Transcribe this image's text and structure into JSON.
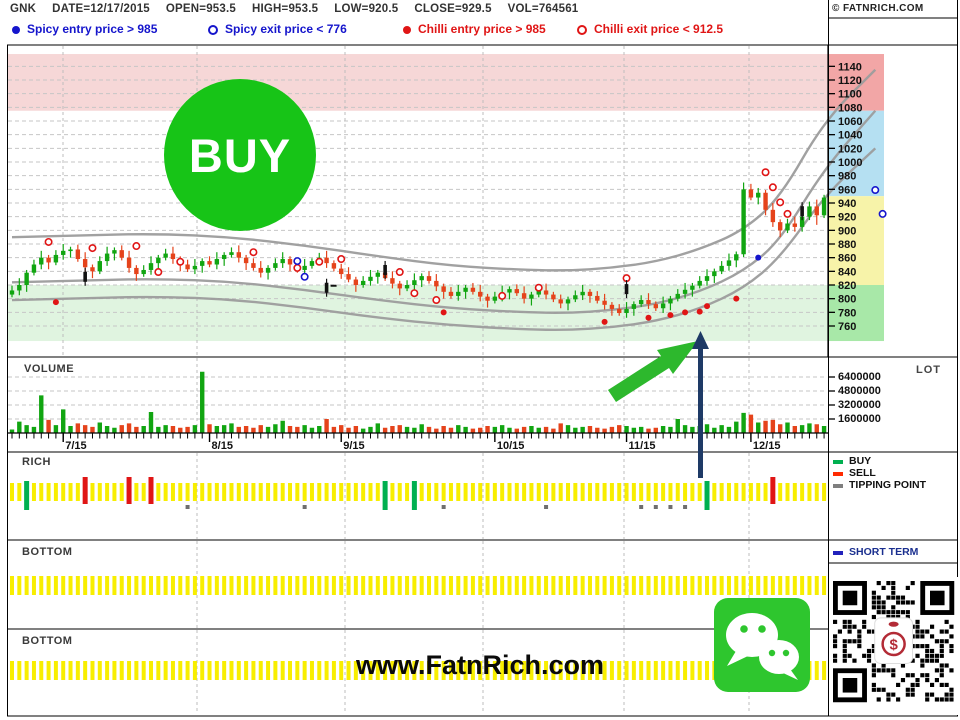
{
  "header": {
    "symbol": "GNK",
    "fields": [
      "DATE=12/17/2015",
      "OPEN=953.5",
      "HIGH=953.5",
      "LOW=920.5",
      "CLOSE=929.5",
      "VOL=764561"
    ],
    "copyright": "© FATNRICH.COM"
  },
  "signal_legend": [
    {
      "label": "Spicy entry price > 985",
      "color": "#1515cc",
      "filled": true
    },
    {
      "label": "Spicy exit price < 776",
      "color": "#1515cc",
      "filled": false
    },
    {
      "label": "Chilli entry price > 985",
      "color": "#e01515",
      "filled": true
    },
    {
      "label": "Chilli exit price < 912.5",
      "color": "#e01515",
      "filled": false
    }
  ],
  "buy_badge": {
    "label": "BUY",
    "bg": "#17c417"
  },
  "watermark": "www.FatnRich.com",
  "panels": {
    "volume": {
      "label": "VOLUME",
      "unit_label": "LOT",
      "axis_labels": [
        "6400000",
        "4800000",
        "3200000",
        "1600000"
      ]
    },
    "rich": {
      "label": "RICH",
      "legend": [
        {
          "label": "BUY",
          "color": "#00b050"
        },
        {
          "label": "SELL",
          "color": "#ff2a00"
        },
        {
          "label": "TIPPING POINT",
          "color": "#7f7f7f"
        }
      ]
    },
    "bottom1": {
      "label": "BOTTOM",
      "legend": [
        {
          "label": "SHORT TERM",
          "color": "#2222bb"
        }
      ]
    },
    "bottom2": {
      "label": "BOTTOM"
    }
  },
  "colors": {
    "up": "#11a511",
    "down": "#e5431b",
    "yellow_tick": "#f8ee00",
    "navy": "#1e3a66",
    "arrow_green": "#2db82d",
    "curve": "#9c9c9c",
    "grid": "#c6c6c6",
    "blue_signal": "#1515cc",
    "red_signal": "#e01515",
    "black_signal": "#111111"
  },
  "chart_data": {
    "type": "candlestick",
    "title": "GNK daily price with envelope bands and signals",
    "y_axis": {
      "min": 760,
      "max": 1140,
      "step": 20,
      "tick_labels": [
        1140,
        1120,
        1100,
        1080,
        1060,
        1040,
        1020,
        1000,
        980,
        960,
        940,
        920,
        900,
        880,
        860,
        840,
        820,
        800,
        780,
        760
      ]
    },
    "x_tick_labels": [
      "7/15",
      "8/15",
      "9/15",
      "10/15",
      "11/15",
      "12/15"
    ],
    "x_tick_indexes": [
      7,
      27,
      45,
      66,
      84,
      101
    ],
    "price_zones": [
      {
        "from": 1075,
        "to": 1158,
        "axis_color": "#f2a6a6",
        "chart_color": "#f6d7d7"
      },
      {
        "from": 950,
        "to": 1075,
        "axis_color": "#b5e0f2",
        "chart_color": "#ffffff"
      },
      {
        "from": 820,
        "to": 950,
        "axis_color": "#f7f3a9",
        "chart_color": "#ffffff"
      },
      {
        "from": 738,
        "to": 820,
        "axis_color": "#a8e8a8",
        "chart_color": "#e0f4e0"
      }
    ],
    "candles": [
      [
        806,
        819,
        802,
        812
      ],
      [
        812,
        830,
        805,
        820
      ],
      [
        820,
        842,
        810,
        838
      ],
      [
        838,
        857,
        834,
        850
      ],
      [
        850,
        870,
        843,
        860
      ],
      [
        860,
        864,
        843,
        853
      ],
      [
        853,
        871,
        849,
        864
      ],
      [
        864,
        880,
        857,
        870
      ],
      [
        870,
        876,
        860,
        872
      ],
      [
        872,
        879,
        854,
        858
      ],
      [
        858,
        868,
        839,
        846
      ],
      [
        846,
        850,
        830,
        840
      ],
      [
        840,
        862,
        836,
        855
      ],
      [
        855,
        876,
        848,
        866
      ],
      [
        866,
        875,
        856,
        871
      ],
      [
        871,
        878,
        856,
        860
      ],
      [
        860,
        870,
        838,
        845
      ],
      [
        845,
        849,
        826,
        836
      ],
      [
        836,
        849,
        832,
        842
      ],
      [
        842,
        862,
        835,
        852
      ],
      [
        852,
        864,
        842,
        860
      ],
      [
        860,
        873,
        856,
        866
      ],
      [
        866,
        876,
        851,
        858
      ],
      [
        858,
        862,
        840,
        850
      ],
      [
        850,
        857,
        839,
        843
      ],
      [
        843,
        858,
        836,
        848
      ],
      [
        848,
        859,
        838,
        855
      ],
      [
        855,
        862,
        846,
        850
      ],
      [
        850,
        868,
        843,
        858
      ],
      [
        858,
        868,
        848,
        864
      ],
      [
        864,
        875,
        860,
        868
      ],
      [
        868,
        878,
        853,
        860
      ],
      [
        860,
        864,
        842,
        852
      ],
      [
        852,
        859,
        841,
        845
      ],
      [
        845,
        855,
        831,
        838
      ],
      [
        838,
        849,
        828,
        845
      ],
      [
        845,
        859,
        841,
        852
      ],
      [
        852,
        868,
        845,
        858
      ],
      [
        858,
        862,
        840,
        850
      ],
      [
        850,
        857,
        838,
        842
      ],
      [
        842,
        858,
        832,
        848
      ],
      [
        848,
        859,
        844,
        855
      ],
      [
        855,
        867,
        851,
        860
      ],
      [
        860,
        870,
        845,
        852
      ],
      [
        852,
        856,
        840,
        844
      ],
      [
        844,
        851,
        829,
        836
      ],
      [
        836,
        846,
        824,
        828
      ],
      [
        828,
        832,
        810,
        820
      ],
      [
        820,
        833,
        816,
        826
      ],
      [
        826,
        842,
        819,
        832
      ],
      [
        832,
        842,
        822,
        838
      ],
      [
        838,
        845,
        826,
        830
      ],
      [
        830,
        840,
        815,
        822
      ],
      [
        822,
        826,
        805,
        815
      ],
      [
        815,
        827,
        811,
        820
      ],
      [
        820,
        837,
        813,
        827
      ],
      [
        827,
        837,
        817,
        833
      ],
      [
        833,
        840,
        822,
        826
      ],
      [
        826,
        836,
        811,
        818
      ],
      [
        818,
        822,
        800,
        810
      ],
      [
        810,
        817,
        800,
        804
      ],
      [
        804,
        820,
        797,
        810
      ],
      [
        810,
        820,
        800,
        816
      ],
      [
        816,
        823,
        806,
        810
      ],
      [
        810,
        820,
        796,
        803
      ],
      [
        803,
        807,
        787,
        797
      ],
      [
        797,
        810,
        793,
        803
      ],
      [
        803,
        819,
        796,
        809
      ],
      [
        809,
        818,
        799,
        814
      ],
      [
        814,
        821,
        804,
        808
      ],
      [
        808,
        818,
        793,
        800
      ],
      [
        800,
        810,
        790,
        806
      ],
      [
        806,
        819,
        802,
        812
      ],
      [
        812,
        822,
        799,
        806
      ],
      [
        806,
        810,
        795,
        799
      ],
      [
        799,
        806,
        786,
        793
      ],
      [
        793,
        803,
        783,
        799
      ],
      [
        799,
        812,
        795,
        805
      ],
      [
        805,
        820,
        798,
        810
      ],
      [
        810,
        814,
        794,
        804
      ],
      [
        804,
        811,
        793,
        797
      ],
      [
        797,
        807,
        784,
        791
      ],
      [
        791,
        795,
        775,
        785
      ],
      [
        785,
        792,
        775,
        779
      ],
      [
        779,
        795,
        772,
        785
      ],
      [
        785,
        796,
        775,
        792
      ],
      [
        792,
        805,
        788,
        798
      ],
      [
        798,
        808,
        785,
        792
      ],
      [
        792,
        796,
        782,
        786
      ],
      [
        786,
        803,
        779,
        793
      ],
      [
        793,
        804,
        783,
        800
      ],
      [
        800,
        814,
        796,
        807
      ],
      [
        807,
        823,
        800,
        813
      ],
      [
        813,
        823,
        803,
        819
      ],
      [
        819,
        833,
        815,
        826
      ],
      [
        826,
        843,
        819,
        833
      ],
      [
        833,
        844,
        823,
        840
      ],
      [
        840,
        855,
        836,
        848
      ],
      [
        848,
        866,
        841,
        856
      ],
      [
        856,
        869,
        846,
        865
      ],
      [
        865,
        970,
        861,
        960
      ],
      [
        960,
        968,
        944,
        948
      ],
      [
        948,
        962,
        938,
        955
      ],
      [
        955,
        959,
        922,
        930
      ],
      [
        930,
        940,
        905,
        912
      ],
      [
        912,
        916,
        890,
        900
      ],
      [
        900,
        917,
        896,
        910
      ],
      [
        910,
        920,
        898,
        905
      ],
      [
        905,
        924,
        898,
        920
      ],
      [
        920,
        942,
        915,
        935
      ],
      [
        935,
        945,
        908,
        922
      ],
      [
        922,
        952,
        918,
        948
      ]
    ],
    "volume": [
      400000,
      1300000,
      900000,
      700000,
      4300000,
      1500000,
      900000,
      2700000,
      800000,
      1100000,
      900000,
      700000,
      1200000,
      800000,
      600000,
      900000,
      1100000,
      700000,
      800000,
      2400000,
      700000,
      900000,
      800000,
      600000,
      700000,
      900000,
      7000000,
      1000000,
      800000,
      900000,
      1100000,
      700000,
      800000,
      600000,
      900000,
      700000,
      1000000,
      1400000,
      800000,
      700000,
      900000,
      600000,
      800000,
      1600000,
      700000,
      900000,
      600000,
      800000,
      500000,
      700000,
      1100000,
      600000,
      800000,
      900000,
      700000,
      600000,
      1000000,
      700000,
      500000,
      800000,
      600000,
      900000,
      700000,
      500000,
      600000,
      800000,
      700000,
      900000,
      600000,
      500000,
      700000,
      800000,
      600000,
      700000,
      500000,
      1100000,
      900000,
      600000,
      700000,
      800000,
      600000,
      500000,
      700000,
      900000,
      800000,
      600000,
      700000,
      500000,
      600000,
      800000,
      700000,
      1600000,
      900000,
      700000,
      800000,
      1000000,
      600000,
      900000,
      700000,
      1300000,
      2300000,
      2100000,
      1200000,
      1400000,
      1500000,
      1000000,
      1200000,
      800000,
      900000,
      1100000,
      1000000,
      800000
    ],
    "envelope": {
      "upper": [
        [
          0,
          890
        ],
        [
          10,
          893
        ],
        [
          20,
          895
        ],
        [
          30,
          890
        ],
        [
          40,
          878
        ],
        [
          50,
          862
        ],
        [
          60,
          848
        ],
        [
          70,
          842
        ],
        [
          76,
          841
        ],
        [
          82,
          845
        ],
        [
          88,
          854
        ],
        [
          94,
          872
        ],
        [
          100,
          900
        ],
        [
          105,
          948
        ],
        [
          111,
          1060
        ],
        [
          118,
          1135
        ]
      ],
      "middle": [
        [
          0,
          824
        ],
        [
          10,
          827
        ],
        [
          20,
          829
        ],
        [
          30,
          825
        ],
        [
          40,
          813
        ],
        [
          50,
          798
        ],
        [
          60,
          786
        ],
        [
          70,
          780
        ],
        [
          76,
          779
        ],
        [
          82,
          783
        ],
        [
          88,
          792
        ],
        [
          94,
          810
        ],
        [
          100,
          840
        ],
        [
          105,
          885
        ],
        [
          111,
          990
        ],
        [
          118,
          1075
        ]
      ],
      "lower": [
        [
          0,
          798
        ],
        [
          10,
          801
        ],
        [
          20,
          803
        ],
        [
          30,
          799
        ],
        [
          40,
          787
        ],
        [
          50,
          772
        ],
        [
          60,
          761
        ],
        [
          70,
          755
        ],
        [
          76,
          754
        ],
        [
          82,
          758
        ],
        [
          88,
          767
        ],
        [
          94,
          785
        ],
        [
          100,
          815
        ],
        [
          105,
          860
        ],
        [
          111,
          950
        ],
        [
          118,
          1020
        ]
      ]
    },
    "markers": {
      "chilli_exit_open_red": [
        [
          5,
          883
        ],
        [
          11,
          874
        ],
        [
          17,
          877
        ],
        [
          20,
          839
        ],
        [
          23,
          854
        ],
        [
          33,
          868
        ],
        [
          39,
          845
        ],
        [
          42,
          854
        ],
        [
          45,
          858
        ],
        [
          53,
          839
        ],
        [
          55,
          808
        ],
        [
          58,
          798
        ],
        [
          67,
          804
        ],
        [
          72,
          816
        ],
        [
          84,
          830
        ],
        [
          103,
          985
        ],
        [
          104,
          963
        ],
        [
          105,
          941
        ],
        [
          106,
          924
        ]
      ],
      "chilli_entry_dot_red": [
        [
          6,
          795
        ],
        [
          59,
          780
        ],
        [
          81,
          766
        ],
        [
          87,
          772
        ],
        [
          90,
          776
        ],
        [
          92,
          780
        ],
        [
          94,
          781
        ],
        [
          95,
          789
        ],
        [
          99,
          800
        ]
      ],
      "spicy_dot_blue": [
        [
          102,
          860
        ]
      ],
      "spicy_open_blue": [
        [
          39,
          855
        ],
        [
          40,
          832
        ],
        [
          118,
          959
        ],
        [
          119,
          924
        ]
      ],
      "tipping_black_candles": [
        [
          10,
          832
        ],
        [
          43,
          816
        ],
        [
          51,
          842
        ],
        [
          84,
          814
        ],
        [
          108,
          928
        ]
      ]
    },
    "rich_signals": {
      "buy_indexes": [
        2,
        51,
        55,
        95
      ],
      "sell_indexes": [
        10,
        16,
        19,
        104
      ],
      "tipping_indexes": [
        24,
        40,
        59,
        73,
        86,
        88,
        90,
        92
      ]
    },
    "volume_axis_ticks": [
      6400000,
      4800000,
      3200000,
      1600000
    ],
    "qr": {
      "size": 25,
      "seed": 11
    }
  }
}
